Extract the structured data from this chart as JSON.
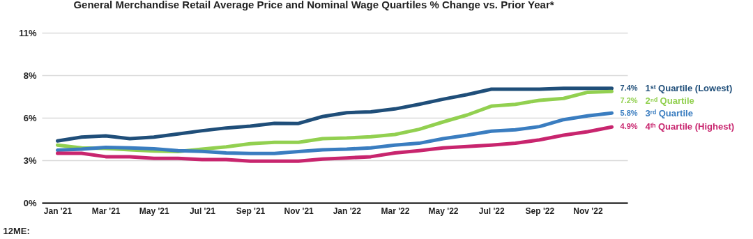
{
  "chart_data": {
    "type": "line",
    "title": "General Merchandise Retail Average Price and Nominal Wage Quartiles % Change vs. Prior Year*",
    "xlabel": "12ME:",
    "categories": [
      "Jan '21",
      null,
      "Mar '21",
      null,
      "May '21",
      null,
      "Jul '21",
      null,
      "Sep '21",
      null,
      "Nov '21",
      null,
      "Jan '22",
      null,
      "Mar '22",
      null,
      "May '22",
      null,
      "Jul '22",
      null,
      "Sep '22",
      null,
      "Nov '22",
      null
    ],
    "series": [
      {
        "name": "1ˢᵗ Quartile (Lowest)",
        "color": "#1f4e79",
        "values": [
          4.0,
          4.25,
          4.33,
          4.15,
          4.25,
          4.45,
          4.66,
          4.84,
          4.96,
          5.14,
          5.13,
          5.58,
          5.83,
          5.88,
          6.07,
          6.37,
          6.7,
          7.0,
          7.35,
          7.35,
          7.35,
          7.4,
          7.4,
          7.4
        ],
        "value_labels": [
          null,
          null,
          null,
          null,
          null,
          null,
          null,
          null,
          null,
          null,
          null,
          null,
          null,
          null,
          null,
          null,
          null,
          null,
          null,
          null,
          null,
          null,
          null,
          "7.4%"
        ]
      },
      {
        "name": "2ⁿᵈ Quartile",
        "color": "#92d050",
        "values": [
          3.73,
          3.55,
          3.52,
          3.43,
          3.35,
          3.31,
          3.47,
          3.62,
          3.82,
          3.91,
          3.91,
          4.15,
          4.19,
          4.27,
          4.42,
          4.75,
          5.23,
          5.68,
          6.25,
          6.37,
          6.63,
          6.75,
          7.15,
          7.2
        ],
        "value_labels": [
          null,
          null,
          null,
          null,
          null,
          null,
          null,
          null,
          null,
          null,
          null,
          null,
          null,
          null,
          null,
          null,
          null,
          null,
          null,
          null,
          null,
          null,
          null,
          "7.2%"
        ]
      },
      {
        "name": "3ʳᵈ Quartile",
        "color": "#3a7dc0",
        "values": [
          3.4,
          3.47,
          3.58,
          3.55,
          3.49,
          3.37,
          3.32,
          3.22,
          3.19,
          3.19,
          3.31,
          3.43,
          3.47,
          3.55,
          3.73,
          3.85,
          4.15,
          4.37,
          4.63,
          4.72,
          4.93,
          5.38,
          5.62,
          5.8
        ],
        "value_labels": [
          null,
          null,
          null,
          null,
          null,
          null,
          null,
          null,
          null,
          null,
          null,
          null,
          null,
          null,
          null,
          null,
          null,
          null,
          null,
          null,
          null,
          null,
          null,
          "5.8%"
        ]
      },
      {
        "name": "4ᵗʰ Quartile (Highest)",
        "color": "#c8256e",
        "values": [
          3.2,
          3.2,
          2.98,
          2.98,
          2.87,
          2.87,
          2.8,
          2.8,
          2.69,
          2.69,
          2.69,
          2.83,
          2.9,
          2.98,
          3.22,
          3.37,
          3.55,
          3.64,
          3.73,
          3.85,
          4.07,
          4.37,
          4.6,
          4.9
        ],
        "value_labels": [
          null,
          null,
          null,
          null,
          null,
          null,
          null,
          null,
          null,
          null,
          null,
          null,
          null,
          null,
          null,
          null,
          null,
          null,
          null,
          null,
          null,
          null,
          null,
          "4.9%"
        ]
      }
    ],
    "ylim": [
      0,
      11
    ],
    "yticks": [
      {
        "value": 0,
        "label": "0%"
      },
      {
        "value": 2.75,
        "label": "3%"
      },
      {
        "value": 5.5,
        "label": "6%"
      },
      {
        "value": 8.25,
        "label": "8%"
      },
      {
        "value": 11,
        "label": "11%"
      }
    ],
    "grid": "y",
    "legend": false,
    "marker": "none",
    "line_style": "solid"
  }
}
